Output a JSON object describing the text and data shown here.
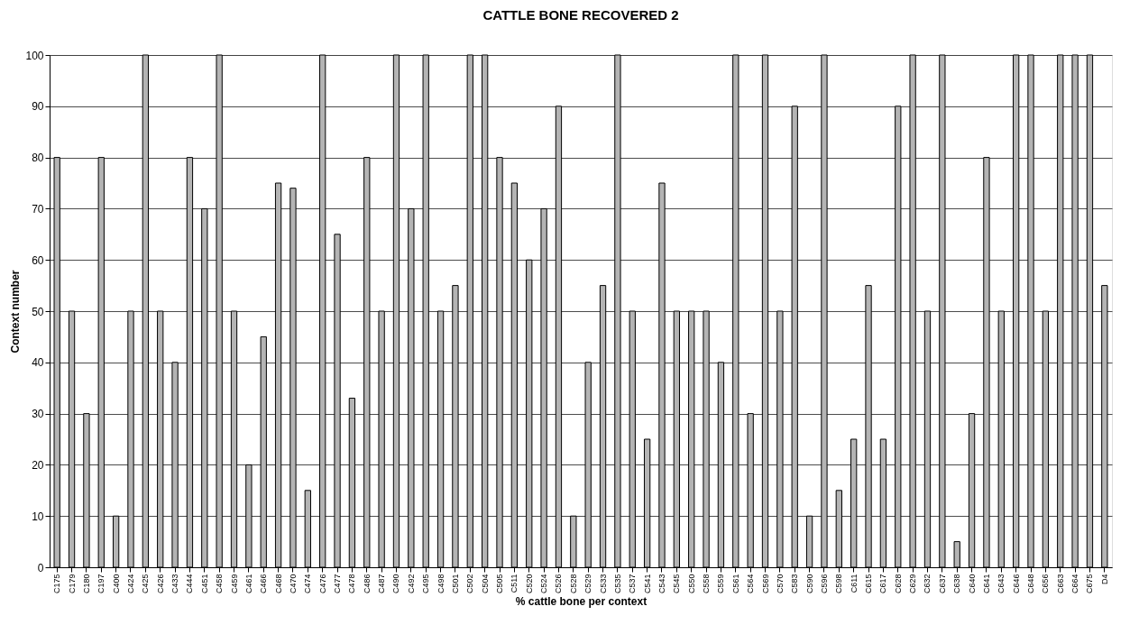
{
  "chart_data": {
    "type": "bar",
    "title": "CATTLE BONE RECOVERED 2",
    "xlabel": "% cattle bone per context",
    "ylabel": "Context number",
    "categories": [
      "C175",
      "C179",
      "C180",
      "C197",
      "C400",
      "C424",
      "C425",
      "C426",
      "C433",
      "C444",
      "C451",
      "C458",
      "C459",
      "C461",
      "C466",
      "C468",
      "C470",
      "C474",
      "C476",
      "C477",
      "C478",
      "C486",
      "C487",
      "C490",
      "C492",
      "C495",
      "C498",
      "C501",
      "C502",
      "C504",
      "C505",
      "C511",
      "C520",
      "C524",
      "C526",
      "C528",
      "C529",
      "C533",
      "C535",
      "C537",
      "C541",
      "C543",
      "C545",
      "C550",
      "C558",
      "C559",
      "C561",
      "C564",
      "C569",
      "C570",
      "C583",
      "C590",
      "C596",
      "C598",
      "C611",
      "C615",
      "C617",
      "C628",
      "C629",
      "C632",
      "C637",
      "C638",
      "C640",
      "C641",
      "C643",
      "C646",
      "C648",
      "C656",
      "C663",
      "C664",
      "C675",
      "D4"
    ],
    "values": [
      80,
      50,
      30,
      80,
      10,
      50,
      100,
      50,
      40,
      80,
      70,
      100,
      50,
      20,
      45,
      75,
      74,
      15,
      100,
      65,
      33,
      80,
      50,
      100,
      70,
      100,
      50,
      55,
      100,
      100,
      80,
      75,
      60,
      70,
      90,
      10,
      40,
      55,
      100,
      50,
      25,
      75,
      50,
      50,
      50,
      40,
      100,
      30,
      100,
      50,
      90,
      10,
      100,
      15,
      25,
      55,
      25,
      90,
      100,
      50,
      100,
      5,
      30,
      80,
      50,
      100,
      100,
      50,
      100,
      100,
      100,
      55
    ],
    "color": "#b4b4b4",
    "ylim": [
      0,
      100
    ],
    "yticks": [
      0,
      10,
      20,
      30,
      40,
      50,
      60,
      70,
      80,
      90,
      100
    ],
    "grid": "y"
  }
}
